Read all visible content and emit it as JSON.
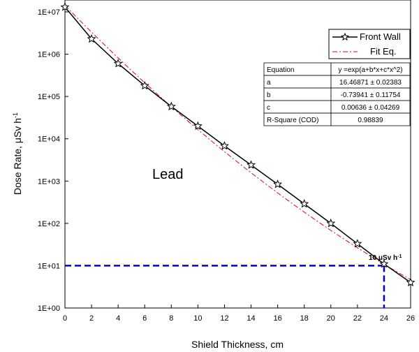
{
  "chart_data": {
    "type": "scatter",
    "x_ticks": [
      0,
      2,
      4,
      6,
      8,
      10,
      12,
      14,
      16,
      18,
      20,
      22,
      24,
      26
    ],
    "y_ticks": [
      "1E+00",
      "1E+01",
      "1E+02",
      "1E+03",
      "1E+04",
      "1E+05",
      "1E+06",
      "1E+07"
    ],
    "xlabel": "Shield Thickness, cm",
    "ylabel_main": "Dose Rate, μSv h",
    "ylabel_sup": "-1",
    "xlim": [
      0,
      26
    ],
    "ylim": [
      1,
      10000000
    ],
    "yscale": "log",
    "series": [
      {
        "name": "Front Wall",
        "color": "#000000",
        "marker": "star-open",
        "x": [
          0,
          2,
          4,
          6,
          8,
          10,
          12,
          14,
          16,
          18,
          20,
          22,
          24,
          26
        ],
        "y": [
          13000000,
          2300000,
          600000,
          180000,
          58000,
          20000,
          6800,
          2400,
          840,
          290,
          100,
          33,
          11,
          4
        ]
      },
      {
        "name": "Fit Eq.",
        "color": "#e8001c",
        "style": "dash-dot",
        "equation": {
          "a": 16.46871,
          "b": -0.73941,
          "c": 0.00636
        },
        "x_range": [
          0,
          26
        ]
      }
    ],
    "reference": {
      "value": 10,
      "at_x": 24,
      "color": "#0000dd",
      "label_main": "10 μSv h",
      "label_sup": "-1"
    },
    "annotation": "Lead",
    "legend_position": "top-right",
    "fit_table": {
      "rows": [
        [
          "Equation",
          "y =exp(a+b*x+c*x^2)"
        ],
        [
          "a",
          "16.46871 ± 0.02383"
        ],
        [
          "b",
          "-0.73941 ± 0.11754"
        ],
        [
          "c",
          "0.00636 ± 0.04269"
        ],
        [
          "R-Square (COD)",
          "0.98839"
        ]
      ]
    }
  }
}
